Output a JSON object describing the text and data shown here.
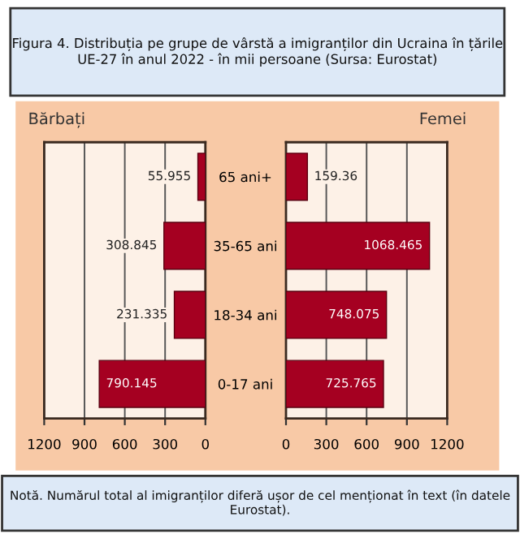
{
  "chart_data": [
    {
      "type": "bar",
      "orientation": "horizontal",
      "title": "Bărbați",
      "annotations": [
        "Figura 4. Distribuția pe grupe de vârstă a imigranților din Ucraina în țările UE-27 în anul 2022 - în mii persoane (Sursa: Eurostat)"
      ],
      "categories": [
        null,
        null,
        null,
        null
      ],
      "values": [
        55.955,
        308.845,
        231.335,
        790.145
      ],
      "data_labels": true,
      "color": "#a50021",
      "xlim": [
        1200,
        0
      ],
      "xticks": [
        1200,
        900,
        600,
        300,
        0
      ],
      "grid": "x",
      "tick_labels": "x"
    },
    {
      "type": "bar",
      "orientation": "horizontal",
      "title": "Femei",
      "annotations": [
        "Notă. Numărul total al imigranților diferă ușor de cel menționat în text (în datele Eurostat)."
      ],
      "categories": [
        "65 ani+",
        "35-65 ani",
        "18-34 ani",
        "0-17 ani"
      ],
      "values": [
        159.36,
        1068.465,
        748.075,
        725.765
      ],
      "data_labels": true,
      "color": "#a50021",
      "xlim": [
        0,
        1200
      ],
      "xticks": [
        0,
        300,
        600,
        900,
        1200
      ],
      "grid": "x"
    }
  ]
}
